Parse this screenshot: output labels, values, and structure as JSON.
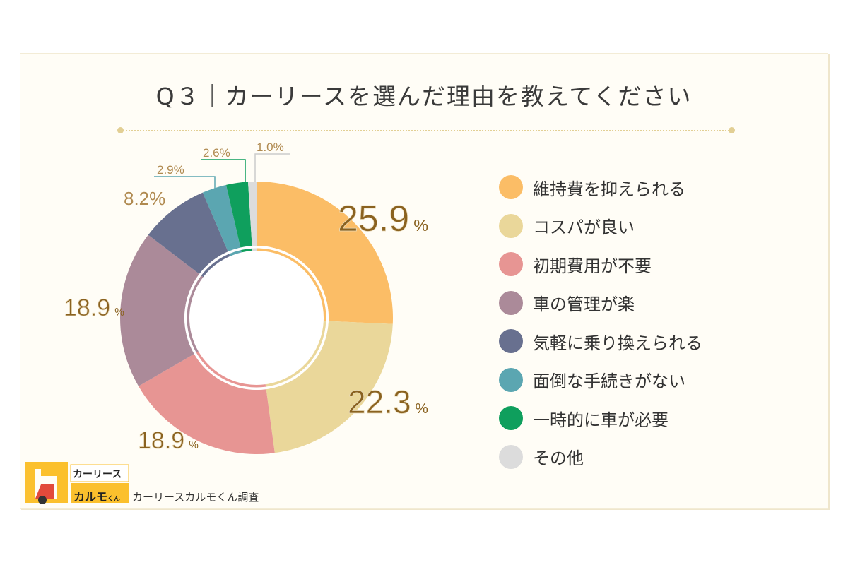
{
  "chart_data": {
    "type": "pie",
    "donut": true,
    "title": "Q３｜カーリースを選んだ理由を教えてください",
    "categories": [
      "維持費を抑えられる",
      "コスパが良い",
      "初期費用が不要",
      "車の管理が楽",
      "気軽に乗り換えられる",
      "面倒な手続きがない",
      "一時的に車が必要",
      "その他"
    ],
    "values": [
      25.9,
      22.3,
      18.9,
      18.9,
      8.2,
      2.9,
      2.6,
      1.0
    ],
    "labels": [
      "25.9",
      "22.3",
      "18.9",
      "18.9",
      "8.2%",
      "2.9%",
      "2.6%",
      "1.0%"
    ],
    "unit": "%",
    "colors": [
      "#fbbd66",
      "#ead79a",
      "#e79593",
      "#ab8a99",
      "#68708f",
      "#5ba6b1",
      "#0f9f5d",
      "#dcdcdc"
    ],
    "legend_position": "right"
  },
  "logo": {
    "line1": "カーリース",
    "line2": "カルモ",
    "small": "くん"
  },
  "credit": "カーリースカルモくん調査"
}
